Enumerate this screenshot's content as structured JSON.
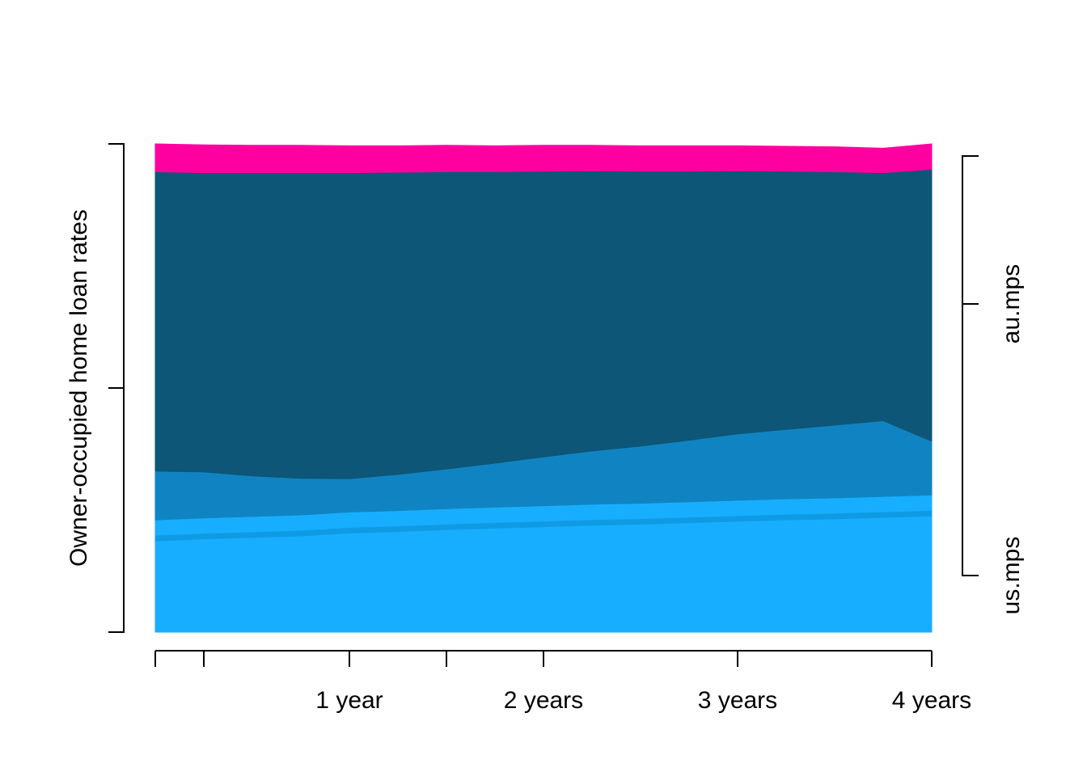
{
  "chart_data": {
    "type": "area",
    "stacked": true,
    "ylabel": "Owner-occupied home loan rates",
    "xlabel": "",
    "x_tick_labels": [
      "1 year",
      "2 years",
      "3 years",
      "4 years"
    ],
    "x": [
      0,
      0.25,
      0.5,
      0.75,
      1,
      1.25,
      1.5,
      1.75,
      2,
      2.25,
      2.5,
      2.75,
      3,
      3.25,
      3.5,
      3.75,
      4
    ],
    "xlim": [
      0,
      4
    ],
    "ylim": [
      0,
      1
    ],
    "series": [
      {
        "color": "#18AEFF",
        "values": [
          0.23,
          0.234,
          0.237,
          0.24,
          0.246,
          0.249,
          0.253,
          0.256,
          0.259,
          0.262,
          0.264,
          0.267,
          0.27,
          0.273,
          0.275,
          0.278,
          0.281
        ]
      },
      {
        "color": "#0F9BE3",
        "values": [
          0.0,
          0.0,
          0.0,
          0.0,
          0.0,
          0.0,
          0.0,
          0.0,
          0.0,
          0.0,
          0.0,
          0.0,
          0.0,
          0.0,
          0.0,
          0.0,
          0.0
        ]
      },
      {
        "color": "#1084C2",
        "values": [
          0.1,
          0.094,
          0.083,
          0.075,
          0.068,
          0.074,
          0.081,
          0.09,
          0.1,
          0.109,
          0.117,
          0.126,
          0.136,
          0.142,
          0.149,
          0.155,
          0.11
        ]
      },
      {
        "color": "#0D5677",
        "values": [
          0.613,
          0.613,
          0.621,
          0.626,
          0.627,
          0.619,
          0.609,
          0.597,
          0.585,
          0.574,
          0.563,
          0.551,
          0.539,
          0.529,
          0.519,
          0.508,
          0.557
        ]
      },
      {
        "color": "#FF00A0",
        "values": [
          0.057,
          0.057,
          0.056,
          0.056,
          0.055,
          0.054,
          0.054,
          0.053,
          0.053,
          0.052,
          0.052,
          0.052,
          0.051,
          0.051,
          0.051,
          0.05,
          0.052
        ]
      }
    ],
    "right_axis_labels": [
      "us.mps",
      "au.mps"
    ],
    "grid": false
  }
}
